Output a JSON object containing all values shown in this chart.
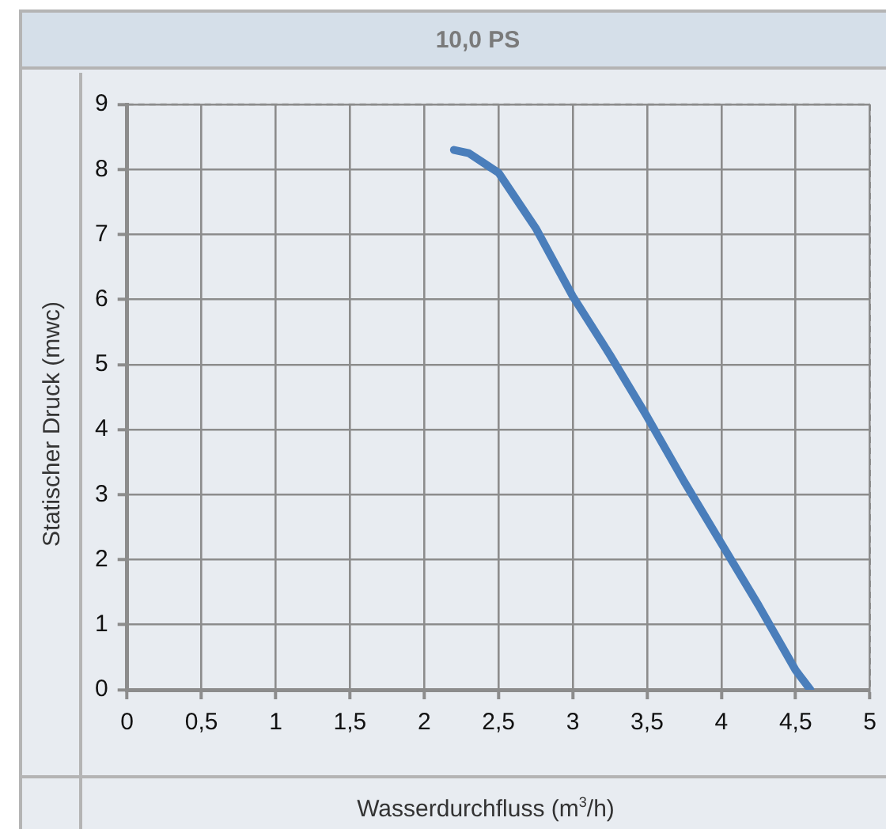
{
  "chart_data": {
    "type": "line",
    "title": "10,0 PS",
    "xlabel": "Wasserdurchfluss (m$^{3}$/h)",
    "ylabel": "Statischer Druck (mwc)",
    "series": [
      {
        "color": "#4a7ebb",
        "x": [
          2.2,
          2.3,
          2.4,
          2.5,
          2.75,
          3,
          3.25,
          3.5,
          3.75,
          4,
          4.25,
          4.5,
          4.6
        ],
        "values": [
          8.3,
          8.25,
          8.1,
          7.95,
          7.1,
          6.05,
          5.15,
          4.2,
          3.2,
          2.25,
          1.3,
          0.3,
          0
        ]
      }
    ],
    "xlim": [
      0,
      5
    ],
    "xticks": [
      0,
      {
        "value": 0.5,
        "label": "0,5"
      },
      1,
      {
        "value": 1.5,
        "label": "1,5"
      },
      2,
      {
        "value": 2.5,
        "label": "2,5"
      },
      3,
      {
        "value": 3.5,
        "label": "3,5"
      },
      4,
      {
        "value": 4.5,
        "label": "4,5"
      },
      5
    ],
    "ylim": [
      0,
      9
    ],
    "yticks": [
      0,
      1,
      2,
      3,
      4,
      5,
      6,
      7,
      8,
      9
    ],
    "grid": true,
    "legend": false,
    "marker": "none",
    "line_style": "solid"
  }
}
